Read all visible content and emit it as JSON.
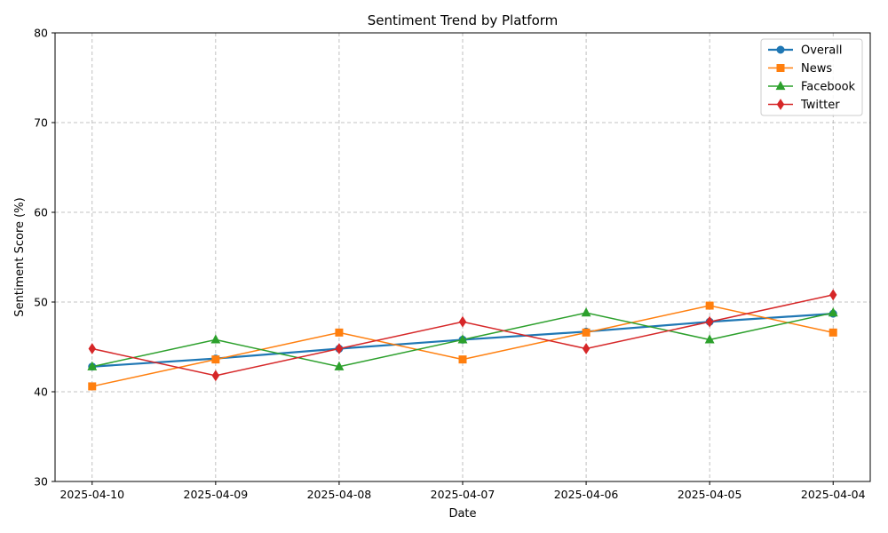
{
  "chart_data": {
    "type": "line",
    "title": "Sentiment Trend by Platform",
    "xlabel": "Date",
    "ylabel": "Sentiment Score (%)",
    "categories": [
      "2025-04-10",
      "2025-04-09",
      "2025-04-08",
      "2025-04-07",
      "2025-04-06",
      "2025-04-05",
      "2025-04-04"
    ],
    "ylim": [
      30,
      80
    ],
    "yticks": [
      "30",
      "40",
      "50",
      "60",
      "70",
      "80"
    ],
    "grid": true,
    "legend_position": "top-right",
    "series": [
      {
        "name": "Overall",
        "color": "#1f77b4",
        "marker": "circle",
        "values": [
          42.8,
          43.7,
          44.8,
          45.8,
          46.7,
          47.8,
          48.7
        ]
      },
      {
        "name": "News",
        "color": "#ff7f0e",
        "marker": "square",
        "values": [
          40.6,
          43.6,
          46.6,
          43.6,
          46.6,
          49.6,
          46.6
        ]
      },
      {
        "name": "Facebook",
        "color": "#2ca02c",
        "marker": "triangle",
        "values": [
          42.8,
          45.8,
          42.8,
          45.8,
          48.8,
          45.8,
          48.8
        ]
      },
      {
        "name": "Twitter",
        "color": "#d62728",
        "marker": "diamond",
        "values": [
          44.8,
          41.8,
          44.8,
          47.8,
          44.8,
          47.8,
          50.8
        ]
      }
    ]
  }
}
